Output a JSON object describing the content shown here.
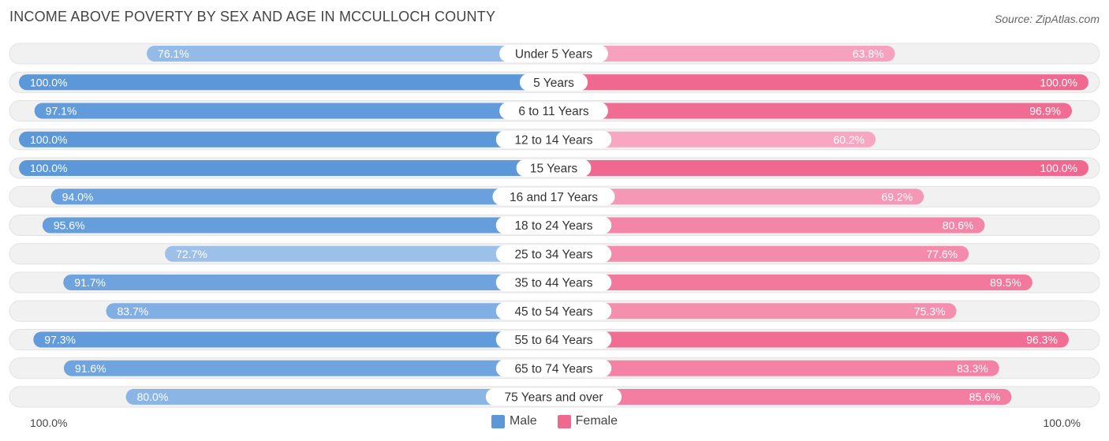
{
  "title": "INCOME ABOVE POVERTY BY SEX AND AGE IN MCCULLOCH COUNTY",
  "source": "Source: ZipAtlas.com",
  "axis": {
    "left_label": "100.0%",
    "right_label": "100.0%"
  },
  "legend": {
    "male": "Male",
    "female": "Female"
  },
  "colors": {
    "male_strong": "#5b97d9",
    "male_light": "#a3c4eb",
    "female_strong": "#f0678f",
    "female_light": "#f7a7c2",
    "track": "#f1f1f1"
  },
  "chart_data": {
    "type": "bar",
    "orientation": "horizontal-diverging",
    "xlim": [
      0,
      100
    ],
    "categories": [
      "Under 5 Years",
      "5 Years",
      "6 to 11 Years",
      "12 to 14 Years",
      "15 Years",
      "16 and 17 Years",
      "18 to 24 Years",
      "25 to 34 Years",
      "35 to 44 Years",
      "45 to 54 Years",
      "55 to 64 Years",
      "65 to 74 Years",
      "75 Years and over"
    ],
    "series": [
      {
        "name": "Male",
        "values": [
          76.1,
          100.0,
          97.1,
          100.0,
          100.0,
          94.0,
          95.6,
          72.7,
          91.7,
          83.7,
          97.3,
          91.6,
          80.0
        ],
        "labels": [
          "76.1%",
          "100.0%",
          "97.1%",
          "100.0%",
          "100.0%",
          "94.0%",
          "95.6%",
          "72.7%",
          "91.7%",
          "83.7%",
          "97.3%",
          "91.6%",
          "80.0%"
        ]
      },
      {
        "name": "Female",
        "values": [
          63.8,
          100.0,
          96.9,
          60.2,
          100.0,
          69.2,
          80.6,
          77.6,
          89.5,
          75.3,
          96.3,
          83.3,
          85.6
        ],
        "labels": [
          "63.8%",
          "100.0%",
          "96.9%",
          "60.2%",
          "100.0%",
          "69.2%",
          "80.6%",
          "77.6%",
          "89.5%",
          "75.3%",
          "96.3%",
          "83.3%",
          "85.6%"
        ]
      }
    ],
    "legend_position": "bottom-center"
  }
}
